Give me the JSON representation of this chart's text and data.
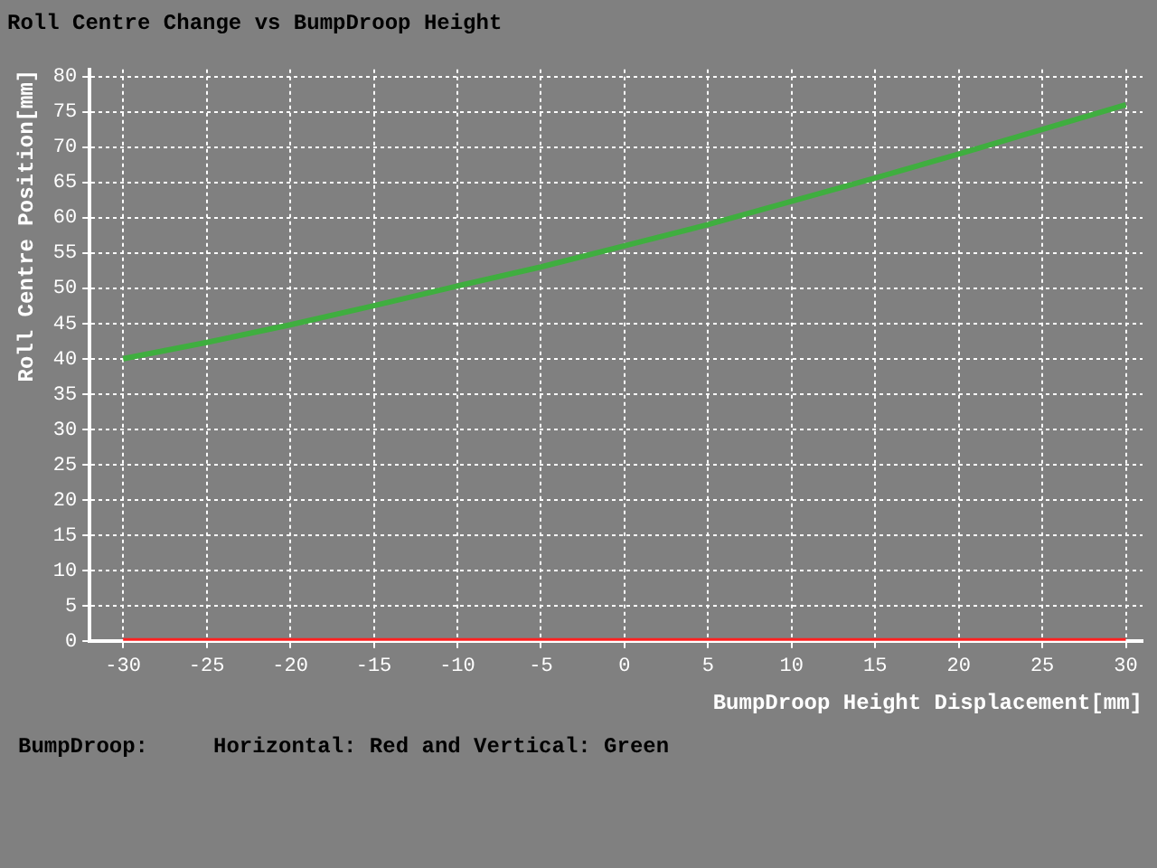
{
  "chart_data": {
    "type": "line",
    "title": "Roll Centre Change vs BumpDroop Height",
    "xlabel": "BumpDroop Height Displacement[mm]",
    "ylabel": "Roll Centre Position[mm]",
    "x": [
      -30,
      -25,
      -20,
      -15,
      -10,
      -5,
      0,
      5,
      10,
      15,
      20,
      25,
      30
    ],
    "series": [
      {
        "color": "#3fae3f",
        "values": [
          40,
          42.3,
          44.8,
          47.5,
          50.3,
          53,
          56,
          59,
          62.3,
          65.6,
          69,
          72.5,
          76
        ]
      },
      {
        "color": "#ff2020",
        "values": [
          0,
          0,
          0,
          0,
          0,
          0,
          0,
          0,
          0,
          0,
          0,
          0,
          0
        ]
      }
    ],
    "xlim": [
      -32,
      31
    ],
    "xticks": [
      -30,
      -25,
      -20,
      -15,
      -10,
      -5,
      0,
      5,
      10,
      15,
      20,
      25,
      30
    ],
    "ylim": [
      0,
      81
    ],
    "yticks": [
      0,
      5,
      10,
      15,
      20,
      25,
      30,
      35,
      40,
      45,
      50,
      55,
      60,
      65,
      70,
      75,
      80
    ],
    "grid": true,
    "legend": false,
    "annotations": [
      "BumpDroop:     Horizontal: Red and Vertical: Green"
    ]
  }
}
